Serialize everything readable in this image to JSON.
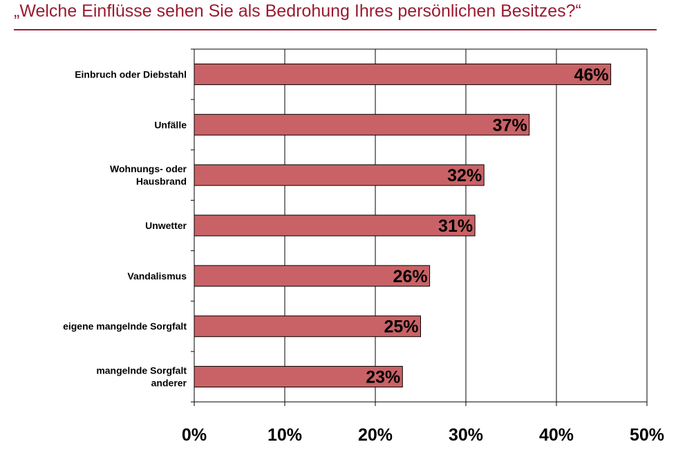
{
  "title": "„Welche Einflüsse sehen Sie als Bedrohung Ihres persönlichen Besitzes?“",
  "colors": {
    "title": "#9b1b30",
    "bar": "#c96266",
    "bar_stroke": "#000000"
  },
  "chart_data": {
    "type": "bar",
    "orientation": "horizontal",
    "categories": [
      "Einbruch oder Diebstahl",
      "Unfälle",
      "Wohnungs- oder Hausbrand",
      "Unwetter",
      "Vandalismus",
      "eigene mangelnde Sorgfalt",
      "mangelnde Sorgfalt anderer"
    ],
    "category_lines": [
      [
        "Einbruch oder Diebstahl"
      ],
      [
        "Unfälle"
      ],
      [
        "Wohnungs- oder",
        "Hausbrand"
      ],
      [
        "Unwetter"
      ],
      [
        "Vandalismus"
      ],
      [
        "eigene mangelnde Sorgfalt"
      ],
      [
        "mangelnde Sorgfalt",
        "anderer"
      ]
    ],
    "values": [
      46,
      37,
      32,
      31,
      26,
      25,
      23
    ],
    "value_labels": [
      "46%",
      "37%",
      "32%",
      "31%",
      "26%",
      "25%",
      "23%"
    ],
    "xlim": [
      0,
      50
    ],
    "xticks": [
      0,
      10,
      20,
      30,
      40,
      50
    ],
    "xtick_labels": [
      "0%",
      "10%",
      "20%",
      "30%",
      "40%",
      "50%"
    ],
    "grid": "vertical",
    "legend": "none"
  }
}
